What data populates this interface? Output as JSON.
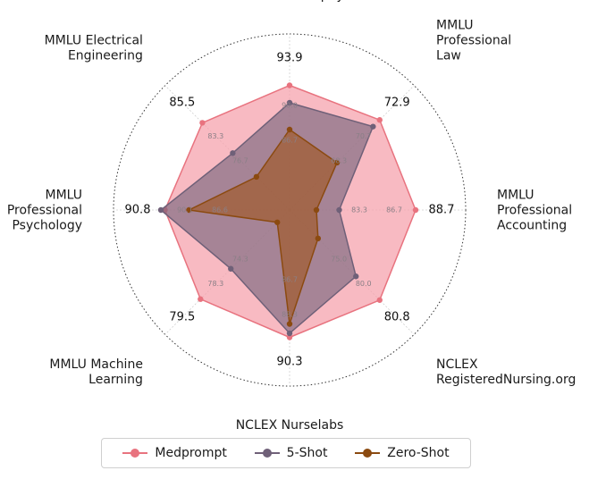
{
  "chart_data": {
    "type": "radar",
    "axes": [
      "MMLU Philosophy",
      "MMLU\nProfessional\nLaw",
      "MMLU\nProfessional\nAccounting",
      "NCLEX\nRegisteredNursing.org",
      "NCLEX Nurselabs",
      "MMLU Machine\nLearning",
      "MMLU\nProfessional\nPsychology",
      "MMLU Electrical\nEngineering"
    ],
    "peak_labels": [
      "93.9",
      "72.9",
      "88.7",
      "80.8",
      "90.3",
      "79.5",
      "90.8",
      "85.5"
    ],
    "tick_labels": [
      [
        "90.0",
        "86.7"
      ],
      [
        "70.7",
        "68.3"
      ],
      [
        "86.7",
        "83.3"
      ],
      [
        "80.0",
        "75.0"
      ],
      [
        "88.3",
        "86.7"
      ],
      [
        "78.3",
        "74.3"
      ],
      [
        "90.1",
        "86.6"
      ],
      [
        "83.3",
        "76.7"
      ]
    ],
    "series": [
      {
        "name": "Medprompt",
        "color": "#e8737f",
        "fill": "#f5a3ae",
        "values": [
          0.93,
          0.95,
          0.94,
          0.95,
          0.95,
          0.94,
          0.93,
          0.92
        ]
      },
      {
        "name": "5-Shot",
        "color": "#6f6078",
        "fill": "#6f6078",
        "values": [
          0.8,
          0.88,
          0.37,
          0.7,
          0.92,
          0.62,
          0.96,
          0.6
        ]
      },
      {
        "name": "Zero-Shot",
        "color": "#8b4a10",
        "fill": "#a0541a",
        "values": [
          0.6,
          0.5,
          0.2,
          0.3,
          0.85,
          0.13,
          0.75,
          0.35
        ]
      }
    ],
    "grid": true,
    "legend_position": "bottom"
  }
}
